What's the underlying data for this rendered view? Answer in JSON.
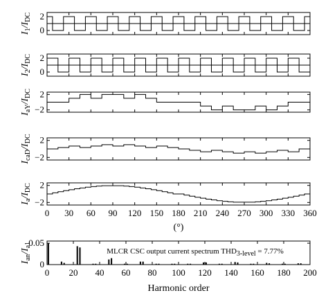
{
  "chart_data": [
    {
      "type": "line",
      "ylabel": "I_1/I_DC",
      "ylabel_parts": [
        {
          "t": "I",
          "s": "i"
        },
        {
          "t": "1",
          "s": "sub"
        },
        {
          "t": "/I",
          "s": "i"
        },
        {
          "t": "DC",
          "s": "sub"
        }
      ],
      "yticks": [
        "2",
        "0"
      ],
      "ylim": [
        -0.6,
        2.6
      ],
      "xlim": [
        0,
        360
      ],
      "series": [
        {
          "x": [
            0,
            0,
            7.5,
            7.5,
            22.5,
            22.5,
            37.5,
            37.5,
            52.5,
            52.5,
            67.5,
            67.5,
            82.5,
            82.5,
            97.5,
            97.5,
            112.5,
            112.5,
            127.5,
            127.5,
            142.5,
            142.5,
            157.5,
            157.5,
            172.5,
            172.5,
            187.5,
            187.5,
            202.5,
            202.5,
            217.5,
            217.5,
            232.5,
            232.5,
            247.5,
            247.5,
            262.5,
            262.5,
            277.5,
            277.5,
            292.5,
            292.5,
            307.5,
            307.5,
            322.5,
            322.5,
            337.5,
            337.5,
            352.5,
            352.5,
            360
          ],
          "y": [
            2,
            2,
            2,
            1,
            1,
            2,
            2,
            1,
            1,
            2,
            2,
            1,
            1,
            2,
            2,
            1,
            1,
            2,
            2,
            1,
            1,
            2,
            2,
            1,
            1,
            2,
            2,
            1,
            1,
            2,
            2,
            1,
            1,
            2,
            2,
            1,
            1,
            2,
            2,
            1,
            1,
            2,
            2,
            1,
            1,
            2,
            2,
            1,
            1,
            2,
            2
          ]
        },
        {
          "x": [
            0,
            7.5,
            7.5,
            22.5,
            22.5,
            37.5,
            37.5,
            52.5,
            52.5,
            67.5,
            67.5,
            82.5,
            82.5,
            97.5,
            97.5,
            112.5,
            112.5,
            127.5,
            127.5,
            142.5,
            142.5,
            157.5,
            157.5,
            172.5,
            172.5,
            187.5,
            187.5,
            202.5,
            202.5,
            217.5,
            217.5,
            232.5,
            232.5,
            247.5,
            247.5,
            262.5,
            262.5,
            277.5,
            277.5,
            292.5,
            292.5,
            307.5,
            307.5,
            322.5,
            322.5,
            337.5,
            337.5,
            352.5,
            352.5,
            360
          ],
          "y": [
            1,
            1,
            0,
            0,
            1,
            1,
            0,
            0,
            1,
            1,
            0,
            0,
            1,
            1,
            0,
            0,
            1,
            1,
            0,
            0,
            1,
            1,
            0,
            0,
            1,
            1,
            0,
            0,
            1,
            1,
            0,
            0,
            1,
            1,
            0,
            0,
            1,
            1,
            0,
            0,
            1,
            1,
            0,
            0,
            1,
            1,
            0,
            0,
            1,
            1
          ]
        }
      ]
    },
    {
      "type": "line",
      "ylabel": "I_2/I_DC",
      "ylabel_parts": [
        {
          "t": "I",
          "s": "i"
        },
        {
          "t": "2",
          "s": "sub"
        },
        {
          "t": "/I",
          "s": "i"
        },
        {
          "t": "DC",
          "s": "sub"
        }
      ],
      "yticks": [
        "2",
        "0"
      ],
      "ylim": [
        -0.6,
        2.6
      ],
      "xlim": [
        0,
        360
      ],
      "series": [
        {
          "x": [
            0,
            15,
            15,
            30,
            30,
            45,
            45,
            60,
            60,
            75,
            75,
            90,
            90,
            105,
            105,
            120,
            120,
            135,
            135,
            150,
            150,
            165,
            165,
            180,
            180,
            195,
            195,
            210,
            210,
            225,
            225,
            240,
            240,
            255,
            255,
            270,
            270,
            285,
            285,
            300,
            300,
            315,
            315,
            330,
            330,
            345,
            345,
            360
          ],
          "y": [
            2,
            2,
            1,
            1,
            2,
            2,
            1,
            1,
            2,
            2,
            1,
            1,
            2,
            2,
            1,
            1,
            2,
            2,
            1,
            1,
            2,
            2,
            1,
            1,
            2,
            2,
            1,
            1,
            2,
            2,
            1,
            1,
            2,
            2,
            1,
            1,
            2,
            2,
            1,
            1,
            2,
            2,
            1,
            1,
            2,
            2,
            1,
            1
          ]
        },
        {
          "x": [
            0,
            15,
            15,
            30,
            30,
            45,
            45,
            60,
            60,
            75,
            75,
            90,
            90,
            105,
            105,
            120,
            120,
            135,
            135,
            150,
            150,
            165,
            165,
            180,
            180,
            195,
            195,
            210,
            210,
            225,
            225,
            240,
            240,
            255,
            255,
            270,
            270,
            285,
            285,
            300,
            300,
            315,
            315,
            330,
            330,
            345,
            345,
            360
          ],
          "y": [
            1,
            1,
            0,
            0,
            1,
            1,
            0,
            0,
            1,
            1,
            0,
            0,
            1,
            1,
            0,
            0,
            1,
            1,
            0,
            0,
            1,
            1,
            0,
            0,
            1,
            1,
            0,
            0,
            1,
            1,
            0,
            0,
            1,
            1,
            0,
            0,
            1,
            1,
            0,
            0,
            1,
            1,
            0,
            0,
            1,
            1,
            0,
            0
          ]
        }
      ]
    },
    {
      "type": "line",
      "ylabel": "I_aY/I_DC",
      "ylabel_parts": [
        {
          "t": "I",
          "s": "i"
        },
        {
          "t": "aY",
          "s": "sub"
        },
        {
          "t": "/I",
          "s": "i"
        },
        {
          "t": "DC",
          "s": "sub"
        }
      ],
      "yticks": [
        "2",
        "−2"
      ],
      "ylim": [
        -2.6,
        2.6
      ],
      "xlim": [
        0,
        360
      ],
      "series": [
        {
          "x": [
            0,
            30,
            30,
            45,
            45,
            60,
            60,
            75,
            75,
            105,
            105,
            120,
            120,
            135,
            135,
            150,
            150,
            180,
            180,
            210,
            210,
            225,
            225,
            240,
            240,
            255,
            255,
            285,
            285,
            300,
            300,
            315,
            315,
            330,
            330,
            360
          ],
          "y": [
            0,
            0,
            1,
            1,
            2,
            2,
            1,
            1,
            2,
            2,
            1,
            1,
            2,
            2,
            1,
            1,
            0,
            0,
            0,
            0,
            -1,
            -1,
            -2,
            -2,
            -1,
            -1,
            -2,
            -2,
            -1,
            -1,
            -2,
            -2,
            -1,
            -1,
            0,
            0
          ]
        }
      ]
    },
    {
      "type": "line",
      "ylabel": "I_caD/I_DC",
      "ylabel_parts": [
        {
          "t": "I",
          "s": "i"
        },
        {
          "t": "caD",
          "s": "sub"
        },
        {
          "t": "/I",
          "s": "i"
        },
        {
          "t": "DC",
          "s": "sub"
        }
      ],
      "yticks": [
        "2",
        "−2"
      ],
      "ylim": [
        -2.6,
        2.6
      ],
      "xlim": [
        0,
        360
      ],
      "series": [
        {
          "x": [
            0,
            15,
            15,
            30,
            30,
            45,
            45,
            60,
            60,
            75,
            75,
            90,
            90,
            105,
            105,
            120,
            120,
            135,
            135,
            150,
            150,
            165,
            165,
            180,
            180,
            195,
            195,
            210,
            210,
            225,
            225,
            240,
            240,
            255,
            255,
            270,
            270,
            285,
            285,
            300,
            300,
            315,
            315,
            330,
            330,
            345,
            345,
            360
          ],
          "y": [
            0,
            0,
            0.333,
            0.333,
            0.667,
            0.667,
            0.333,
            0.333,
            0.667,
            0.667,
            1,
            1,
            0.667,
            0.667,
            1,
            1,
            0.667,
            0.667,
            0.333,
            0.333,
            0.667,
            0.667,
            0.333,
            0.333,
            0,
            0,
            -0.333,
            -0.333,
            -0.667,
            -0.667,
            -0.333,
            -0.333,
            -0.667,
            -0.667,
            -1,
            -1,
            -0.667,
            -0.667,
            -1,
            -1,
            -0.667,
            -0.667,
            -0.333,
            -0.333,
            -0.667,
            -0.667,
            0,
            0
          ]
        }
      ]
    },
    {
      "type": "line",
      "ylabel": "I_a/I_DC",
      "ylabel_parts": [
        {
          "t": "I",
          "s": "i"
        },
        {
          "t": "a",
          "s": "sub"
        },
        {
          "t": "/I",
          "s": "i"
        },
        {
          "t": "DC",
          "s": "sub"
        }
      ],
      "yticks": [
        "2",
        "−2"
      ],
      "ylim": [
        -2.6,
        2.6
      ],
      "xlim": [
        0,
        360
      ],
      "xticks": [
        "0",
        "30",
        "60",
        "90",
        "120",
        "150",
        "180",
        "210",
        "240",
        "270",
        "300",
        "330",
        "360"
      ],
      "xlabel": "(°)",
      "series": [
        {
          "x": [
            0,
            7.5,
            7.5,
            15,
            15,
            22.5,
            22.5,
            30,
            30,
            37.5,
            37.5,
            45,
            45,
            52.5,
            52.5,
            60,
            60,
            67.5,
            67.5,
            75,
            75,
            105,
            105,
            112.5,
            112.5,
            120,
            120,
            127.5,
            127.5,
            135,
            135,
            142.5,
            142.5,
            150,
            150,
            157.5,
            157.5,
            165,
            165,
            172.5,
            172.5,
            187.5,
            187.5,
            195,
            195,
            202.5,
            202.5,
            210,
            210,
            217.5,
            217.5,
            225,
            225,
            232.5,
            232.5,
            240,
            240,
            247.5,
            247.5,
            255,
            255,
            285,
            285,
            292.5,
            292.5,
            300,
            300,
            307.5,
            307.5,
            315,
            315,
            322.5,
            322.5,
            330,
            330,
            337.5,
            337.5,
            345,
            345,
            352.5,
            352.5,
            360
          ],
          "y": [
            0,
            0,
            0.27,
            0.27,
            0.53,
            0.53,
            0.78,
            0.78,
            1.0,
            1.0,
            1.21,
            1.21,
            1.41,
            1.41,
            1.58,
            1.58,
            1.73,
            1.73,
            1.85,
            1.85,
            1.93,
            1.93,
            1.85,
            1.85,
            1.73,
            1.73,
            1.58,
            1.58,
            1.41,
            1.41,
            1.21,
            1.21,
            1.0,
            1.0,
            0.78,
            0.78,
            0.53,
            0.53,
            0.27,
            0.27,
            0,
            0,
            -0.27,
            -0.27,
            -0.53,
            -0.53,
            -0.78,
            -0.78,
            -1.0,
            -1.0,
            -1.21,
            -1.21,
            -1.41,
            -1.41,
            -1.58,
            -1.58,
            -1.73,
            -1.73,
            -1.85,
            -1.85,
            -1.93,
            -1.93,
            -1.85,
            -1.85,
            -1.73,
            -1.73,
            -1.58,
            -1.58,
            -1.41,
            -1.41,
            -1.21,
            -1.21,
            -1.0,
            -1.0,
            -0.78,
            -0.78,
            -0.53,
            -0.53,
            -0.27,
            -0.27,
            0,
            0
          ]
        }
      ]
    },
    {
      "type": "bar",
      "ylabel": "I_an/I_a1",
      "ylabel_parts": [
        {
          "t": "I",
          "s": "i"
        },
        {
          "t": "an",
          "s": "sub"
        },
        {
          "t": "/I",
          "s": "i"
        },
        {
          "t": "a1",
          "s": "sub"
        }
      ],
      "yticks": [
        "0.05",
        "0"
      ],
      "ylim": [
        0,
        0.055
      ],
      "xlim": [
        0,
        200
      ],
      "xticks": [
        "0",
        "20",
        "40",
        "60",
        "80",
        "100",
        "120",
        "140",
        "160",
        "180",
        "200"
      ],
      "xlabel": "Harmonic order",
      "annotation": {
        "main": "MLCR CSC output current spectrum THD",
        "sub": "3-level",
        "tail": " = 7.77%"
      },
      "harmonics": [
        1,
        11,
        13,
        23,
        25,
        35,
        37,
        47,
        49,
        59,
        61,
        71,
        73,
        83,
        85,
        95,
        97,
        107,
        109,
        119,
        121,
        131,
        133,
        143,
        145,
        155,
        157,
        167,
        169,
        179,
        181,
        191,
        193
      ],
      "values": [
        0.05,
        0.007,
        0.004,
        0.043,
        0.04,
        0.002,
        0.002,
        0.012,
        0.015,
        0.002,
        0.002,
        0.007,
        0.007,
        0.002,
        0.002,
        0.002,
        0.002,
        0.002,
        0.002,
        0.005,
        0.005,
        0.002,
        0.002,
        0.006,
        0.005,
        0.002,
        0.002,
        0.004,
        0.003,
        0.002,
        0.002,
        0.003,
        0.003
      ]
    }
  ]
}
